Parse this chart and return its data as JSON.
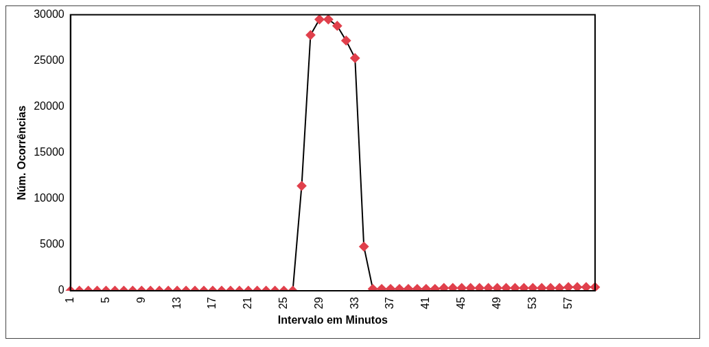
{
  "chart_data": {
    "type": "line",
    "xlabel": "Intervalo em Minutos",
    "ylabel": "Núm. Ocorrências",
    "categories": [
      "1",
      null,
      null,
      null,
      "5",
      null,
      null,
      null,
      "9",
      null,
      null,
      null,
      "13",
      null,
      null,
      null,
      "17",
      null,
      null,
      null,
      "21",
      null,
      null,
      null,
      "25",
      null,
      null,
      null,
      "29",
      null,
      null,
      null,
      "33",
      null,
      null,
      null,
      "37",
      null,
      null,
      null,
      "41",
      null,
      null,
      null,
      "45",
      null,
      null,
      null,
      "49",
      null,
      null,
      null,
      "53",
      null,
      null,
      null,
      "57",
      null,
      null,
      null
    ],
    "series": [
      {
        "color": "#e0404c",
        "values": [
          0,
          0,
          0,
          0,
          0,
          0,
          0,
          0,
          0,
          0,
          0,
          0,
          0,
          0,
          0,
          0,
          0,
          0,
          0,
          0,
          0,
          0,
          0,
          0,
          0,
          0,
          11400,
          27800,
          29500,
          29500,
          28800,
          27200,
          25300,
          4800,
          200,
          200,
          200,
          200,
          200,
          200,
          200,
          200,
          300,
          300,
          300,
          300,
          300,
          300,
          300,
          300,
          300,
          300,
          300,
          300,
          300,
          300,
          400,
          400,
          400,
          400
        ]
      }
    ],
    "ylim": [
      0,
      30000
    ],
    "yticks": [
      0,
      5000,
      10000,
      15000,
      20000,
      25000,
      30000
    ],
    "grid": false,
    "legend": false,
    "marker": "diamond",
    "line_style": "solid"
  }
}
